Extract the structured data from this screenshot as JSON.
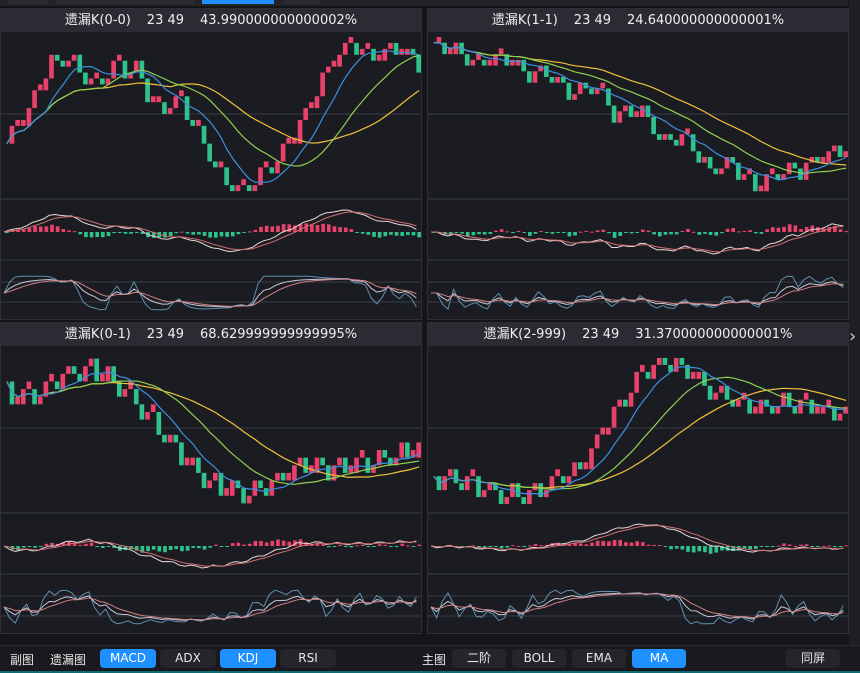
{
  "panels": [
    {
      "title": "遗漏K(0-0)",
      "time": "23 49",
      "percent": "43.990000000000002%"
    },
    {
      "title": "遗漏K(1-1)",
      "time": "23 49",
      "percent": "24.640000000000001%"
    },
    {
      "title": "遗漏K(0-1)",
      "time": "23 49",
      "percent": "68.629999999999995%"
    },
    {
      "title": "遗漏K(2-999)",
      "time": "23 49",
      "percent": "31.370000000000001%"
    }
  ],
  "bottom": {
    "sub_label": "副图",
    "missing_label": "遗漏图",
    "sub_buttons": [
      {
        "label": "MACD",
        "active": true
      },
      {
        "label": "ADX",
        "active": false
      },
      {
        "label": "KDJ",
        "active": true
      },
      {
        "label": "RSI",
        "active": false
      }
    ],
    "main_label": "主图",
    "main_buttons": [
      {
        "label": "二阶",
        "active": false
      },
      {
        "label": "BOLL",
        "active": false
      },
      {
        "label": "EMA",
        "active": false
      },
      {
        "label": "MA",
        "active": true
      }
    ],
    "same_screen": "同屏"
  },
  "right_arrow_icon": "chevron-right-icon",
  "colors": {
    "up": "#e8426a",
    "down": "#2ec28c",
    "ma_short": "#3b8fe0",
    "ma_mid": "#8fd14f",
    "ma_long": "#f0c23a",
    "accent": "#1e90ff"
  },
  "chart_data": [
    {
      "type": "candlestick",
      "indicators": [
        "MA",
        "MACD",
        "KDJ"
      ],
      "trend": [
        40,
        55,
        80,
        82,
        68,
        78,
        76,
        55,
        62,
        40,
        20,
        15,
        25,
        38,
        58,
        80,
        90,
        82,
        88,
        80
      ]
    },
    {
      "type": "candlestick",
      "indicators": [
        "MA",
        "MACD",
        "KDJ"
      ],
      "trend": [
        85,
        82,
        75,
        80,
        70,
        72,
        60,
        65,
        48,
        52,
        35,
        38,
        20,
        25,
        10,
        18,
        20,
        28,
        30
      ]
    },
    {
      "type": "candlestick",
      "indicators": [
        "MA",
        "MACD",
        "KDJ"
      ],
      "trend": [
        70,
        68,
        78,
        80,
        72,
        60,
        45,
        35,
        30,
        35,
        42,
        40,
        42,
        45,
        48
      ]
    },
    {
      "type": "candlestick",
      "indicators": [
        "MA",
        "MACD",
        "KDJ"
      ],
      "trend": [
        20,
        18,
        15,
        12,
        18,
        25,
        45,
        65,
        70,
        62,
        55,
        50,
        52,
        50,
        47
      ]
    }
  ]
}
